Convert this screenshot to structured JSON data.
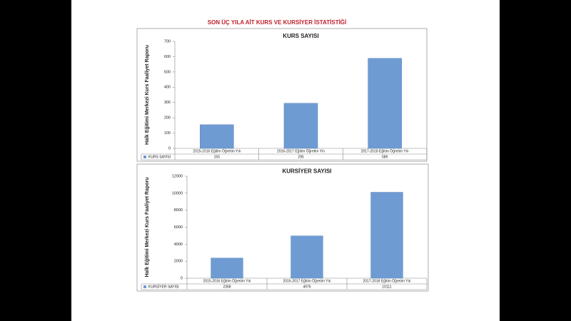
{
  "slide_title": "SON ÜÇ YILA AİT KURS VE KURSİYER İSTATİSTİĞİ",
  "chart_data": [
    {
      "type": "bar",
      "title": "KURS SAYISI",
      "ylabel": "Halk Eğitimi Merkezi Kurs Faaliyet Raporu",
      "categories": [
        "2015-2016 Eğitim Öğretim Yılı",
        "2016-2017 Eğitim Öğretim Yılı",
        "2017-2018 Eğitim Öğretim Yılı"
      ],
      "series": [
        {
          "name": "KURS SAYISI",
          "color": "#6f9bd3",
          "values": [
            155,
            295,
            589
          ]
        }
      ],
      "ylim": [
        0,
        700
      ],
      "yticks": [
        0,
        100,
        200,
        300,
        400,
        500,
        600,
        700
      ],
      "grid": false
    },
    {
      "type": "bar",
      "title": "KURSİYER SAYISI",
      "ylabel": "Halk Eğitimi Merkezi Kurs Faaliyet Raporu",
      "categories": [
        "2015-2016 Eğitim Öğretim Yılı",
        "2016-2017 Eğitim Öğretim Yılı",
        "2017-2018 Eğitim Öğretim Yılı"
      ],
      "series": [
        {
          "name": "KURSİYER SAYISI",
          "color": "#6f9bd3",
          "values": [
            2368,
            4976,
            10111
          ]
        }
      ],
      "ylim": [
        0,
        12000
      ],
      "yticks": [
        0,
        2000,
        4000,
        6000,
        8000,
        10000,
        12000
      ],
      "grid": false
    }
  ]
}
